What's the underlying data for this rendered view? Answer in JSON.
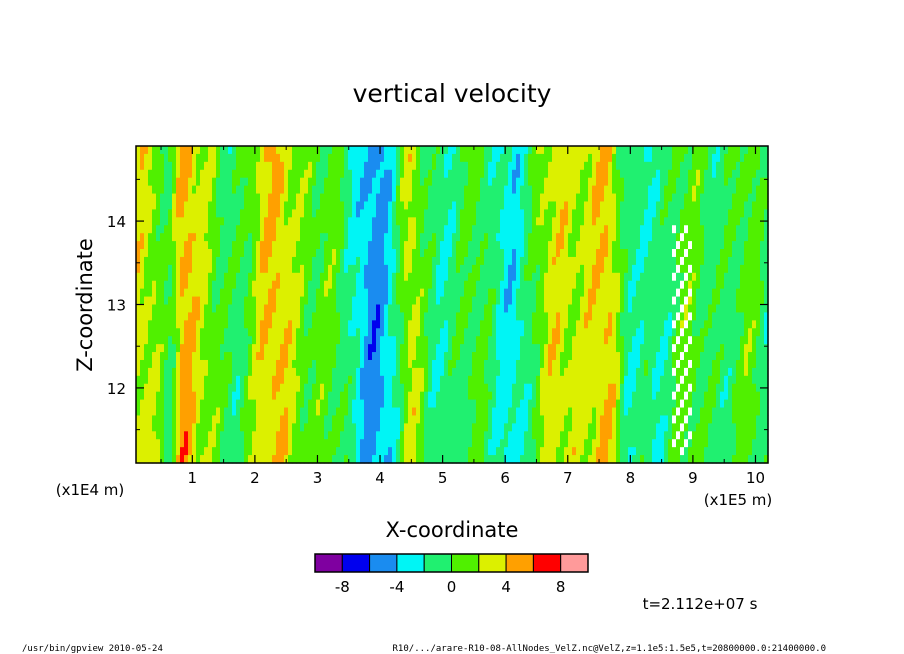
{
  "chart_data": {
    "type": "heatmap",
    "title": "vertical velocity",
    "xlabel": "X-coordinate",
    "ylabel": "Z-coordinate",
    "x_unit": "(x1E5 m)",
    "y_unit": "(x1E4 m)",
    "xlim": [
      0.1,
      10.2
    ],
    "ylim": [
      11.1,
      14.9
    ],
    "xticks": [
      1,
      2,
      3,
      4,
      5,
      6,
      7,
      8,
      9,
      10
    ],
    "yticks": [
      12,
      13,
      14
    ],
    "colorbar": {
      "levels": [
        -10,
        -8,
        -6,
        -4,
        -2,
        0,
        2,
        4,
        6,
        8,
        10
      ],
      "colors": [
        "#7f00a0",
        "#0000ee",
        "#1a8cf0",
        "#00f5f5",
        "#20f070",
        "#50f000",
        "#dcf000",
        "#ffa000",
        "#ff0000",
        "#ff9a9a"
      ],
      "tick_labels": [
        "-8",
        "-4",
        "0",
        "4",
        "8"
      ],
      "tick_values": [
        -8,
        -4,
        0,
        4,
        8
      ]
    },
    "time_label": "t=2.112e+07 s"
  },
  "footer": {
    "left": "/usr/bin/gpview  2010-05-24",
    "right": "R10/.../arare-R10-08-AllNodes_VelZ.nc@VelZ,z=1.1e5:1.5e5,t=20800000.0:21400000.0"
  }
}
